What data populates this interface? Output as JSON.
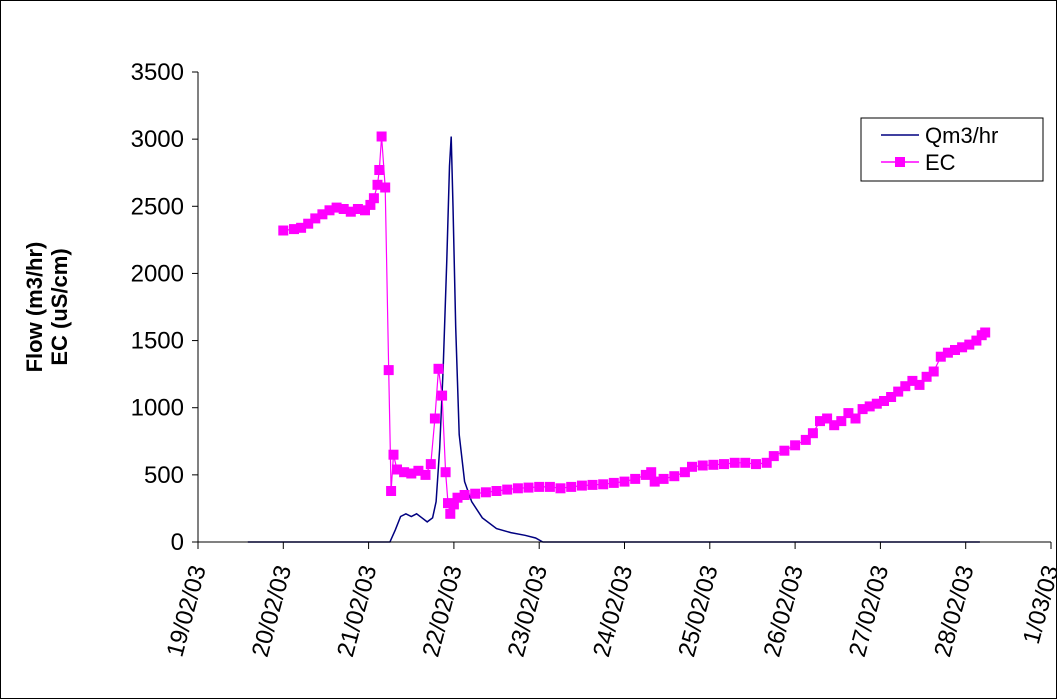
{
  "chart_data": {
    "type": "line",
    "title": "",
    "xlabel": "",
    "ylabel_lines": [
      "Flow (m3/hr)",
      "EC (uS/cm)"
    ],
    "ylim": [
      0,
      3500
    ],
    "y_ticks": [
      "0",
      "500",
      "1000",
      "1500",
      "2000",
      "2500",
      "3000",
      "3500"
    ],
    "xlim": [
      "19/02/03",
      "1/03/03"
    ],
    "x_ticks": [
      "19/02/03",
      "20/02/03",
      "21/02/03",
      "22/02/03",
      "23/02/03",
      "24/02/03",
      "25/02/03",
      "26/02/03",
      "27/02/03",
      "28/02/03",
      "1/03/03"
    ],
    "grid": false,
    "legend_position": "top-right",
    "series": [
      {
        "name": "Qm3/hr",
        "color": "#000080",
        "marker": "none",
        "points": [
          [
            "2003-02-19 14:00",
            0
          ],
          [
            "2003-02-21 06:00",
            0
          ],
          [
            "2003-02-21 07:30",
            90
          ],
          [
            "2003-02-21 09:00",
            190
          ],
          [
            "2003-02-21 10:30",
            210
          ],
          [
            "2003-02-21 12:00",
            190
          ],
          [
            "2003-02-21 13:30",
            210
          ],
          [
            "2003-02-21 15:00",
            180
          ],
          [
            "2003-02-21 16:30",
            150
          ],
          [
            "2003-02-21 18:00",
            180
          ],
          [
            "2003-02-21 19:00",
            300
          ],
          [
            "2003-02-21 20:00",
            700
          ],
          [
            "2003-02-21 21:00",
            1300
          ],
          [
            "2003-02-21 22:00",
            2100
          ],
          [
            "2003-02-21 22:45",
            2800
          ],
          [
            "2003-02-21 23:15",
            3020
          ],
          [
            "2003-02-21 23:45",
            2500
          ],
          [
            "2003-02-22 00:30",
            1600
          ],
          [
            "2003-02-22 01:30",
            800
          ],
          [
            "2003-02-22 03:00",
            450
          ],
          [
            "2003-02-22 05:00",
            300
          ],
          [
            "2003-02-22 08:00",
            180
          ],
          [
            "2003-02-22 12:00",
            100
          ],
          [
            "2003-02-22 16:00",
            70
          ],
          [
            "2003-02-22 20:00",
            50
          ],
          [
            "2003-02-22 23:00",
            30
          ],
          [
            "2003-02-23 01:00",
            0
          ],
          [
            "2003-02-28 04:00",
            0
          ]
        ]
      },
      {
        "name": "EC",
        "color": "#FF00FF",
        "marker": "square",
        "points": [
          [
            "2003-02-20 00:00",
            2320
          ],
          [
            "2003-02-20 03:00",
            2330
          ],
          [
            "2003-02-20 05:00",
            2340
          ],
          [
            "2003-02-20 07:00",
            2370
          ],
          [
            "2003-02-20 09:00",
            2410
          ],
          [
            "2003-02-20 11:00",
            2440
          ],
          [
            "2003-02-20 13:00",
            2470
          ],
          [
            "2003-02-20 15:00",
            2490
          ],
          [
            "2003-02-20 17:00",
            2480
          ],
          [
            "2003-02-20 19:00",
            2460
          ],
          [
            "2003-02-20 21:00",
            2480
          ],
          [
            "2003-02-20 23:00",
            2470
          ],
          [
            "2003-02-21 00:30",
            2510
          ],
          [
            "2003-02-21 01:30",
            2560
          ],
          [
            "2003-02-21 02:30",
            2660
          ],
          [
            "2003-02-21 03:00",
            2770
          ],
          [
            "2003-02-21 03:40",
            3020
          ],
          [
            "2003-02-21 04:40",
            2640
          ],
          [
            "2003-02-21 05:40",
            1280
          ],
          [
            "2003-02-21 06:20",
            380
          ],
          [
            "2003-02-21 07:00",
            650
          ],
          [
            "2003-02-21 08:00",
            540
          ],
          [
            "2003-02-21 10:00",
            520
          ],
          [
            "2003-02-21 12:00",
            510
          ],
          [
            "2003-02-21 14:00",
            530
          ],
          [
            "2003-02-21 16:00",
            500
          ],
          [
            "2003-02-21 17:30",
            580
          ],
          [
            "2003-02-21 18:40",
            920
          ],
          [
            "2003-02-21 19:40",
            1290
          ],
          [
            "2003-02-21 20:40",
            1090
          ],
          [
            "2003-02-21 21:40",
            520
          ],
          [
            "2003-02-21 22:20",
            290
          ],
          [
            "2003-02-21 23:00",
            210
          ],
          [
            "2003-02-22 00:00",
            280
          ],
          [
            "2003-02-22 01:00",
            330
          ],
          [
            "2003-02-22 03:00",
            350
          ],
          [
            "2003-02-22 06:00",
            360
          ],
          [
            "2003-02-22 09:00",
            370
          ],
          [
            "2003-02-22 12:00",
            380
          ],
          [
            "2003-02-22 15:00",
            390
          ],
          [
            "2003-02-22 18:00",
            400
          ],
          [
            "2003-02-22 21:00",
            405
          ],
          [
            "2003-02-23 00:00",
            410
          ],
          [
            "2003-02-23 03:00",
            410
          ],
          [
            "2003-02-23 06:00",
            400
          ],
          [
            "2003-02-23 09:00",
            410
          ],
          [
            "2003-02-23 12:00",
            420
          ],
          [
            "2003-02-23 15:00",
            425
          ],
          [
            "2003-02-23 18:00",
            430
          ],
          [
            "2003-02-23 21:00",
            440
          ],
          [
            "2003-02-24 00:00",
            450
          ],
          [
            "2003-02-24 03:00",
            470
          ],
          [
            "2003-02-24 06:00",
            500
          ],
          [
            "2003-02-24 07:30",
            520
          ],
          [
            "2003-02-24 08:30",
            450
          ],
          [
            "2003-02-24 11:00",
            470
          ],
          [
            "2003-02-24 14:00",
            490
          ],
          [
            "2003-02-24 17:00",
            520
          ],
          [
            "2003-02-24 19:00",
            560
          ],
          [
            "2003-02-24 22:00",
            570
          ],
          [
            "2003-02-25 01:00",
            575
          ],
          [
            "2003-02-25 04:00",
            580
          ],
          [
            "2003-02-25 07:00",
            590
          ],
          [
            "2003-02-25 10:00",
            590
          ],
          [
            "2003-02-25 13:00",
            580
          ],
          [
            "2003-02-25 16:00",
            590
          ],
          [
            "2003-02-25 18:00",
            640
          ],
          [
            "2003-02-25 21:00",
            680
          ],
          [
            "2003-02-26 00:00",
            720
          ],
          [
            "2003-02-26 03:00",
            760
          ],
          [
            "2003-02-26 05:00",
            810
          ],
          [
            "2003-02-26 07:00",
            900
          ],
          [
            "2003-02-26 09:00",
            920
          ],
          [
            "2003-02-26 11:00",
            870
          ],
          [
            "2003-02-26 13:00",
            900
          ],
          [
            "2003-02-26 15:00",
            960
          ],
          [
            "2003-02-26 17:00",
            920
          ],
          [
            "2003-02-26 19:00",
            990
          ],
          [
            "2003-02-26 21:00",
            1010
          ],
          [
            "2003-02-26 23:00",
            1030
          ],
          [
            "2003-02-27 01:00",
            1050
          ],
          [
            "2003-02-27 03:00",
            1080
          ],
          [
            "2003-02-27 05:00",
            1120
          ],
          [
            "2003-02-27 07:00",
            1160
          ],
          [
            "2003-02-27 09:00",
            1200
          ],
          [
            "2003-02-27 11:00",
            1170
          ],
          [
            "2003-02-27 13:00",
            1230
          ],
          [
            "2003-02-27 15:00",
            1270
          ],
          [
            "2003-02-27 17:00",
            1380
          ],
          [
            "2003-02-27 19:00",
            1410
          ],
          [
            "2003-02-27 21:00",
            1430
          ],
          [
            "2003-02-27 23:00",
            1450
          ],
          [
            "2003-02-28 01:00",
            1470
          ],
          [
            "2003-02-28 03:00",
            1500
          ],
          [
            "2003-02-28 04:30",
            1540
          ],
          [
            "2003-02-28 05:30",
            1560
          ]
        ]
      }
    ]
  }
}
